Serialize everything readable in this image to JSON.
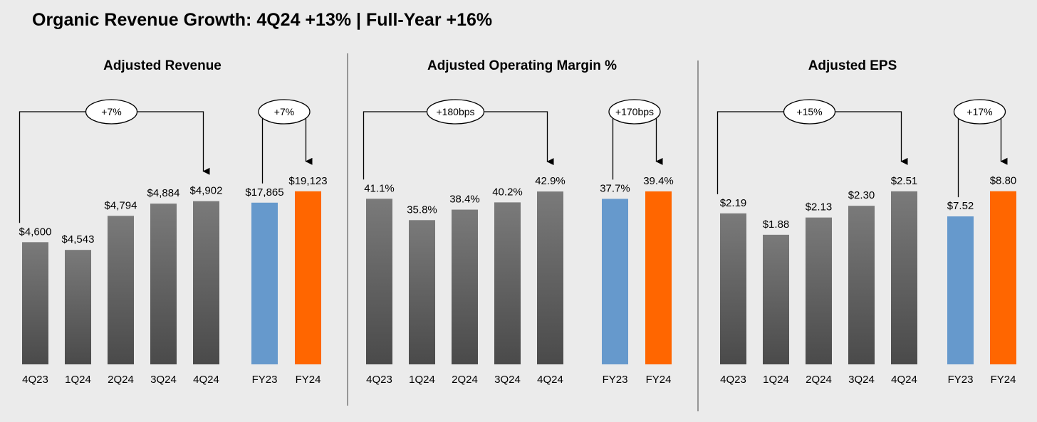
{
  "page_title": "Organic Revenue Growth: 4Q24 +13% | Full-Year +16%",
  "colors": {
    "background": "#ebebeb",
    "quarter_bar_top": "#7a7a7a",
    "quarter_bar_bottom": "#4a4a4a",
    "fy23": "#6699cc",
    "fy24": "#ff6600",
    "divider": "#7a7a7a"
  },
  "chart_data": [
    {
      "type": "bar",
      "title": "Adjusted Revenue",
      "quarterly": {
        "categories": [
          "4Q23",
          "1Q24",
          "2Q24",
          "3Q24",
          "4Q24"
        ],
        "values": [
          4600,
          4543,
          4794,
          4884,
          4902
        ],
        "labels": [
          "$4,600",
          "$4,543",
          "$4,794",
          "$4,884",
          "$4,902"
        ],
        "ylim": [
          3700,
          5000
        ],
        "growth_label": "+7%"
      },
      "annual": {
        "categories": [
          "FY23",
          "FY24"
        ],
        "values": [
          17865,
          19123
        ],
        "labels": [
          "$17,865",
          "$19,123"
        ],
        "ylim": [
          0,
          19500
        ],
        "growth_label": "+7%"
      }
    },
    {
      "type": "bar",
      "title": "Adjusted Operating Margin %",
      "quarterly": {
        "categories": [
          "4Q23",
          "1Q24",
          "2Q24",
          "3Q24",
          "4Q24"
        ],
        "values": [
          41.1,
          35.8,
          38.4,
          40.2,
          42.9
        ],
        "labels": [
          "41.1%",
          "35.8%",
          "38.4%",
          "40.2%",
          "42.9%"
        ],
        "ylim": [
          0,
          43.8
        ],
        "growth_label": "+180bps"
      },
      "annual": {
        "categories": [
          "FY23",
          "FY24"
        ],
        "values": [
          37.7,
          39.4
        ],
        "labels": [
          "37.7%",
          "39.4%"
        ],
        "ylim": [
          0,
          40.2
        ],
        "growth_label": "+170bps"
      }
    },
    {
      "type": "bar",
      "title": "Adjusted EPS",
      "quarterly": {
        "categories": [
          "4Q23",
          "1Q24",
          "2Q24",
          "3Q24",
          "4Q24"
        ],
        "values": [
          2.19,
          1.88,
          2.13,
          2.3,
          2.51
        ],
        "labels": [
          "$2.19",
          "$1.88",
          "$2.13",
          "$2.30",
          "$2.51"
        ],
        "ylim": [
          0,
          2.56
        ],
        "growth_label": "+15%"
      },
      "annual": {
        "categories": [
          "FY23",
          "FY24"
        ],
        "values": [
          7.52,
          8.8
        ],
        "labels": [
          "$7.52",
          "$8.80"
        ],
        "ylim": [
          0,
          8.97
        ],
        "growth_label": "+17%"
      }
    }
  ]
}
